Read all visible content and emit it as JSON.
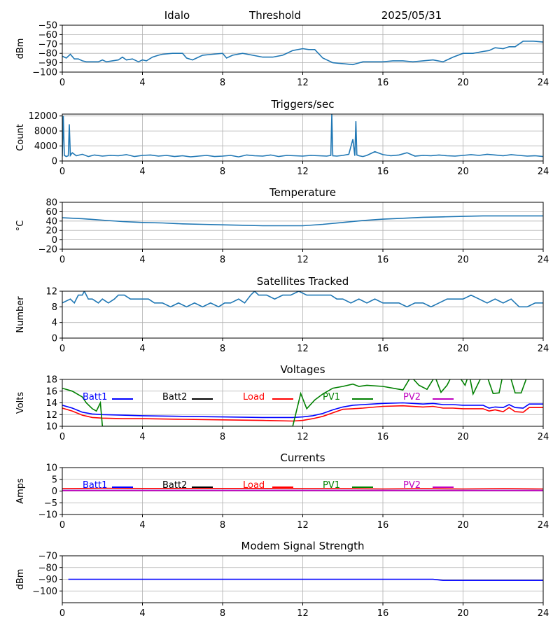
{
  "header": {
    "station": "Idalo",
    "threshold": "Threshold",
    "date": "2025/05/31"
  },
  "chart_data": [
    {
      "id": "threshold",
      "type": "line",
      "title": "",
      "xlabel": "",
      "ylabel": "dBm",
      "xlim": [
        0,
        24
      ],
      "ylim": [
        -100,
        -50
      ],
      "xticks": [
        0,
        4,
        8,
        12,
        16,
        20,
        24
      ],
      "yticks": [
        -100,
        -90,
        -80,
        -70,
        -60,
        -50
      ],
      "ytick_labels": [
        "−100",
        "−90",
        "−80",
        "−70",
        "−60",
        "−50"
      ],
      "grid": true,
      "series": [
        {
          "color": "#1f77b4",
          "x": [
            0,
            0.2,
            0.4,
            0.6,
            0.8,
            1.0,
            1.2,
            1.5,
            1.8,
            2.0,
            2.2,
            2.5,
            2.8,
            3.0,
            3.2,
            3.5,
            3.8,
            4.0,
            4.2,
            4.5,
            4.8,
            5.0,
            5.5,
            6.0,
            6.2,
            6.5,
            6.8,
            7.0,
            7.5,
            8.0,
            8.2,
            8.5,
            9.0,
            9.5,
            10.0,
            10.5,
            11.0,
            11.5,
            12.0,
            12.3,
            12.6,
            13.0,
            13.5,
            14.0,
            14.5,
            15.0,
            15.5,
            16.0,
            16.5,
            17.0,
            17.5,
            18.0,
            18.5,
            19.0,
            19.5,
            20.0,
            20.5,
            21.0,
            21.3,
            21.6,
            22.0,
            22.3,
            22.6,
            23.0,
            23.5,
            24.0
          ],
          "y": [
            -83,
            -85,
            -81,
            -86,
            -86,
            -88,
            -89,
            -89,
            -89,
            -87,
            -89,
            -88,
            -87,
            -84,
            -87,
            -86,
            -89,
            -87,
            -88,
            -84,
            -82,
            -81,
            -80,
            -80,
            -85,
            -87,
            -84,
            -82,
            -81,
            -80,
            -85,
            -82,
            -80,
            -82,
            -84,
            -84,
            -82,
            -77,
            -75,
            -76,
            -76,
            -85,
            -90,
            -91,
            -92,
            -89,
            -89,
            -89,
            -88,
            -88,
            -89,
            -88,
            -87,
            -89,
            -84,
            -80,
            -80,
            -78,
            -77,
            -74,
            -75,
            -73,
            -73,
            -67,
            -67,
            -68
          ]
        }
      ]
    },
    {
      "id": "triggers",
      "type": "line",
      "title": "Triggers/sec",
      "xlabel": "",
      "ylabel": "Count",
      "xlim": [
        0,
        24
      ],
      "ylim": [
        0,
        12500
      ],
      "xticks": [
        0,
        4,
        8,
        12,
        16,
        20,
        24
      ],
      "yticks": [
        0,
        4000,
        8000,
        12000
      ],
      "ytick_labels": [
        "0",
        "4000",
        "8000",
        "12000"
      ],
      "grid": true,
      "series": [
        {
          "color": "#1f77b4",
          "x": [
            0,
            0.05,
            0.1,
            0.2,
            0.3,
            0.35,
            0.4,
            0.5,
            0.7,
            1.0,
            1.3,
            1.6,
            2.0,
            2.4,
            2.8,
            3.2,
            3.6,
            4.0,
            4.4,
            4.8,
            5.2,
            5.6,
            6.0,
            6.4,
            6.8,
            7.2,
            7.6,
            8.0,
            8.4,
            8.8,
            9.2,
            9.6,
            10.0,
            10.4,
            10.8,
            11.2,
            11.6,
            12.0,
            12.4,
            12.8,
            13.2,
            13.4,
            13.45,
            13.5,
            13.7,
            14.0,
            14.3,
            14.5,
            14.6,
            14.65,
            14.7,
            14.8,
            15.0,
            15.2,
            15.6,
            16.0,
            16.4,
            16.8,
            17.2,
            17.6,
            18.0,
            18.4,
            18.8,
            19.2,
            19.6,
            20.0,
            20.4,
            20.8,
            21.2,
            21.6,
            22.0,
            22.4,
            22.8,
            23.2,
            23.6,
            24.0
          ],
          "y": [
            1200,
            12000,
            1500,
            1200,
            1400,
            9800,
            1500,
            2200,
            1400,
            1800,
            1200,
            1600,
            1300,
            1500,
            1400,
            1700,
            1200,
            1500,
            1600,
            1300,
            1500,
            1200,
            1400,
            1100,
            1300,
            1500,
            1200,
            1300,
            1500,
            1100,
            1600,
            1400,
            1300,
            1600,
            1200,
            1500,
            1400,
            1300,
            1500,
            1400,
            1300,
            1500,
            12500,
            1400,
            1300,
            1500,
            1800,
            5800,
            1400,
            10600,
            1600,
            1400,
            1200,
            1500,
            2500,
            1700,
            1400,
            1600,
            2200,
            1300,
            1500,
            1400,
            1600,
            1400,
            1300,
            1500,
            1700,
            1500,
            1800,
            1600,
            1400,
            1700,
            1500,
            1300,
            1400,
            1200
          ]
        }
      ]
    },
    {
      "id": "temperature",
      "type": "line",
      "title": "Temperature",
      "xlabel": "",
      "ylabel": "°C",
      "xlim": [
        0,
        24
      ],
      "ylim": [
        -20,
        80
      ],
      "xticks": [
        0,
        4,
        8,
        12,
        16,
        20,
        24
      ],
      "yticks": [
        -20,
        0,
        20,
        40,
        60,
        80
      ],
      "ytick_labels": [
        "−20",
        "0",
        "20",
        "40",
        "60",
        "80"
      ],
      "grid": true,
      "series": [
        {
          "color": "#1f77b4",
          "x": [
            0,
            1,
            2,
            3,
            4,
            5,
            6,
            7,
            8,
            9,
            10,
            11,
            12,
            13,
            14,
            15,
            16,
            17,
            18,
            19,
            20,
            21,
            22,
            23,
            24
          ],
          "y": [
            47,
            45,
            42,
            39,
            37,
            36,
            34,
            33,
            32,
            31,
            30,
            30,
            30,
            33,
            37,
            41,
            44,
            46,
            48,
            49,
            50,
            51,
            51,
            51,
            51
          ]
        }
      ]
    },
    {
      "id": "satellites",
      "type": "line",
      "title": "Satellites Tracked",
      "xlabel": "",
      "ylabel": "Number",
      "xlim": [
        0,
        24
      ],
      "ylim": [
        0,
        12
      ],
      "xticks": [
        0,
        4,
        8,
        12,
        16,
        20,
        24
      ],
      "yticks": [
        0,
        4,
        8,
        12
      ],
      "ytick_labels": [
        "0",
        "4",
        "8",
        "12"
      ],
      "grid": true,
      "series": [
        {
          "color": "#1f77b4",
          "x": [
            0,
            0.4,
            0.6,
            0.8,
            1.0,
            1.1,
            1.3,
            1.5,
            1.8,
            2.0,
            2.3,
            2.6,
            2.8,
            3.1,
            3.4,
            3.7,
            4.0,
            4.3,
            4.6,
            5.0,
            5.4,
            5.8,
            6.2,
            6.6,
            7.0,
            7.4,
            7.8,
            8.1,
            8.4,
            8.8,
            9.1,
            9.4,
            9.6,
            9.8,
            10.2,
            10.6,
            11.0,
            11.4,
            11.8,
            12.2,
            12.6,
            13.0,
            13.4,
            13.7,
            14.0,
            14.4,
            14.8,
            15.2,
            15.6,
            16.0,
            16.4,
            16.8,
            17.2,
            17.6,
            18.0,
            18.4,
            18.8,
            19.2,
            19.6,
            20.0,
            20.4,
            20.8,
            21.2,
            21.6,
            22.0,
            22.4,
            22.8,
            23.2,
            23.6,
            24.0
          ],
          "y": [
            9,
            10,
            9,
            11,
            11,
            12,
            10,
            10,
            9,
            10,
            9,
            10,
            11,
            11,
            10,
            10,
            10,
            10,
            9,
            9,
            8,
            9,
            8,
            9,
            8,
            9,
            8,
            9,
            9,
            10,
            9,
            11,
            12,
            11,
            11,
            10,
            11,
            11,
            12,
            11,
            11,
            11,
            11,
            10,
            10,
            9,
            10,
            9,
            10,
            9,
            9,
            9,
            8,
            9,
            9,
            8,
            9,
            10,
            10,
            10,
            11,
            10,
            9,
            10,
            9,
            10,
            8,
            8,
            9,
            9
          ]
        }
      ]
    },
    {
      "id": "voltages",
      "type": "line",
      "title": "Voltages",
      "xlabel": "",
      "ylabel": "Volts",
      "xlim": [
        0,
        24
      ],
      "ylim": [
        10,
        18
      ],
      "xticks": [
        0,
        4,
        8,
        12,
        16,
        20,
        24
      ],
      "yticks": [
        10,
        12,
        14,
        16,
        18
      ],
      "ytick_labels": [
        "10",
        "12",
        "14",
        "16",
        "18"
      ],
      "grid": true,
      "legend": [
        "Batt1",
        "Batt2",
        "Load",
        "PV1",
        "PV2"
      ],
      "legend_colors": [
        "#0000ff",
        "#000000",
        "#ff0000",
        "#008000",
        "#bf00bf"
      ],
      "series": [
        {
          "name": "Batt1",
          "color": "#0000ff",
          "x": [
            0,
            0.5,
            1.0,
            1.5,
            2.0,
            3.0,
            4.0,
            6.0,
            8.0,
            10.0,
            11.5,
            12.0,
            12.5,
            13.0,
            13.5,
            14.0,
            14.5,
            15.0,
            16.0,
            17.0,
            18.0,
            18.5,
            19.0,
            19.5,
            20.0,
            21.0,
            21.3,
            21.6,
            22.0,
            22.3,
            22.6,
            23.0,
            23.3,
            23.6,
            24.0
          ],
          "y": [
            13.6,
            13.1,
            12.4,
            12.1,
            12.0,
            11.9,
            11.8,
            11.7,
            11.6,
            11.5,
            11.5,
            11.6,
            11.8,
            12.2,
            12.8,
            13.3,
            13.6,
            13.7,
            13.9,
            14.0,
            13.8,
            13.9,
            13.7,
            13.7,
            13.6,
            13.6,
            13.1,
            13.3,
            13.2,
            13.7,
            13.2,
            13.1,
            13.8,
            13.8,
            13.8
          ]
        },
        {
          "name": "Load",
          "color": "#ff0000",
          "x": [
            0,
            0.5,
            1.0,
            1.5,
            2.0,
            3.0,
            4.0,
            6.0,
            8.0,
            10.0,
            11.5,
            12.0,
            12.5,
            13.0,
            13.5,
            14.0,
            14.5,
            15.0,
            16.0,
            17.0,
            18.0,
            18.5,
            19.0,
            19.5,
            20.0,
            21.0,
            21.3,
            21.6,
            22.0,
            22.3,
            22.6,
            23.0,
            23.3,
            23.6,
            24.0
          ],
          "y": [
            13.1,
            12.6,
            11.9,
            11.5,
            11.4,
            11.3,
            11.3,
            11.2,
            11.1,
            11.0,
            10.9,
            11.0,
            11.3,
            11.7,
            12.3,
            12.9,
            13.0,
            13.1,
            13.4,
            13.5,
            13.3,
            13.4,
            13.1,
            13.1,
            13.0,
            13.0,
            12.6,
            12.8,
            12.5,
            13.2,
            12.5,
            12.4,
            13.2,
            13.2,
            13.2
          ]
        },
        {
          "name": "PV1",
          "color": "#008000",
          "x": [
            0,
            0.5,
            1.0,
            1.2,
            1.5,
            1.7,
            1.9,
            2.0,
            11.5,
            11.9,
            12.2,
            12.6,
            13.0,
            13.5,
            14.0,
            14.5,
            14.8,
            15.2,
            16.0,
            17.0,
            17.4,
            17.8,
            18.2,
            18.6,
            18.9,
            19.2,
            19.5,
            19.8,
            20.1,
            20.3,
            20.5,
            21.0,
            21.2,
            21.5,
            21.8,
            22.0,
            22.2,
            22.4,
            22.6,
            22.9,
            23.2,
            23.6,
            24.0
          ],
          "y": [
            16.5,
            16.0,
            15.0,
            14.0,
            13.0,
            12.6,
            14.0,
            10.0,
            10.0,
            15.6,
            13.0,
            14.5,
            15.5,
            16.5,
            16.8,
            17.2,
            16.8,
            17.0,
            16.8,
            16.2,
            18.5,
            17.0,
            16.3,
            18.5,
            15.8,
            17.0,
            19.0,
            18.5,
            17.0,
            19.0,
            15.5,
            19.0,
            18.5,
            15.6,
            15.7,
            19.0,
            18.5,
            18.0,
            15.7,
            15.7,
            18.5,
            19.0,
            19.0
          ]
        }
      ]
    },
    {
      "id": "currents",
      "type": "line",
      "title": "Currents",
      "xlabel": "",
      "ylabel": "Amps",
      "xlim": [
        0,
        24
      ],
      "ylim": [
        -10,
        10
      ],
      "xticks": [
        0,
        4,
        8,
        12,
        16,
        20,
        24
      ],
      "yticks": [
        -10,
        -5,
        0,
        5,
        10
      ],
      "ytick_labels": [
        "−10",
        "−5",
        "0",
        "5",
        "10"
      ],
      "grid": true,
      "legend": [
        "Batt1",
        "Batt2",
        "Load",
        "PV1",
        "PV2"
      ],
      "legend_colors": [
        "#0000ff",
        "#000000",
        "#ff0000",
        "#008000",
        "#bf00bf"
      ],
      "series": [
        {
          "name": "Batt1",
          "color": "#0000ff",
          "x": [
            0,
            4,
            8,
            12,
            16,
            20,
            24
          ],
          "y": [
            0.3,
            0.3,
            0.3,
            0.3,
            0.3,
            0.3,
            0.3
          ]
        },
        {
          "name": "PV2",
          "color": "#bf00bf",
          "x": [
            0,
            4,
            8,
            12,
            16,
            20,
            24
          ],
          "y": [
            0.2,
            0.2,
            0.2,
            0.2,
            0.2,
            0.2,
            0.2
          ]
        },
        {
          "name": "Load",
          "color": "#ff0000",
          "x": [
            0,
            2,
            4,
            6,
            8,
            10,
            12,
            14,
            16,
            18,
            20,
            22,
            24
          ],
          "y": [
            1.0,
            1.2,
            1.1,
            1.1,
            1.1,
            1.1,
            1.0,
            1.0,
            0.9,
            1.0,
            0.9,
            1.0,
            0.9
          ]
        }
      ]
    },
    {
      "id": "modem",
      "type": "line",
      "title": "Modem Signal Strength",
      "xlabel": "",
      "ylabel": "dBm",
      "xlim": [
        0,
        24
      ],
      "ylim": [
        -110,
        -70
      ],
      "xticks": [
        0,
        4,
        8,
        12,
        16,
        20,
        24
      ],
      "yticks": [
        -100,
        -90,
        -80,
        -70
      ],
      "ytick_labels": [
        "−100",
        "−90",
        "−80",
        "−70"
      ],
      "grid": true,
      "series": [
        {
          "color": "#0000ff",
          "x": [
            0.3,
            18.5,
            19.0,
            24.0
          ],
          "y": [
            -90,
            -90,
            -91,
            -91
          ]
        }
      ]
    }
  ]
}
